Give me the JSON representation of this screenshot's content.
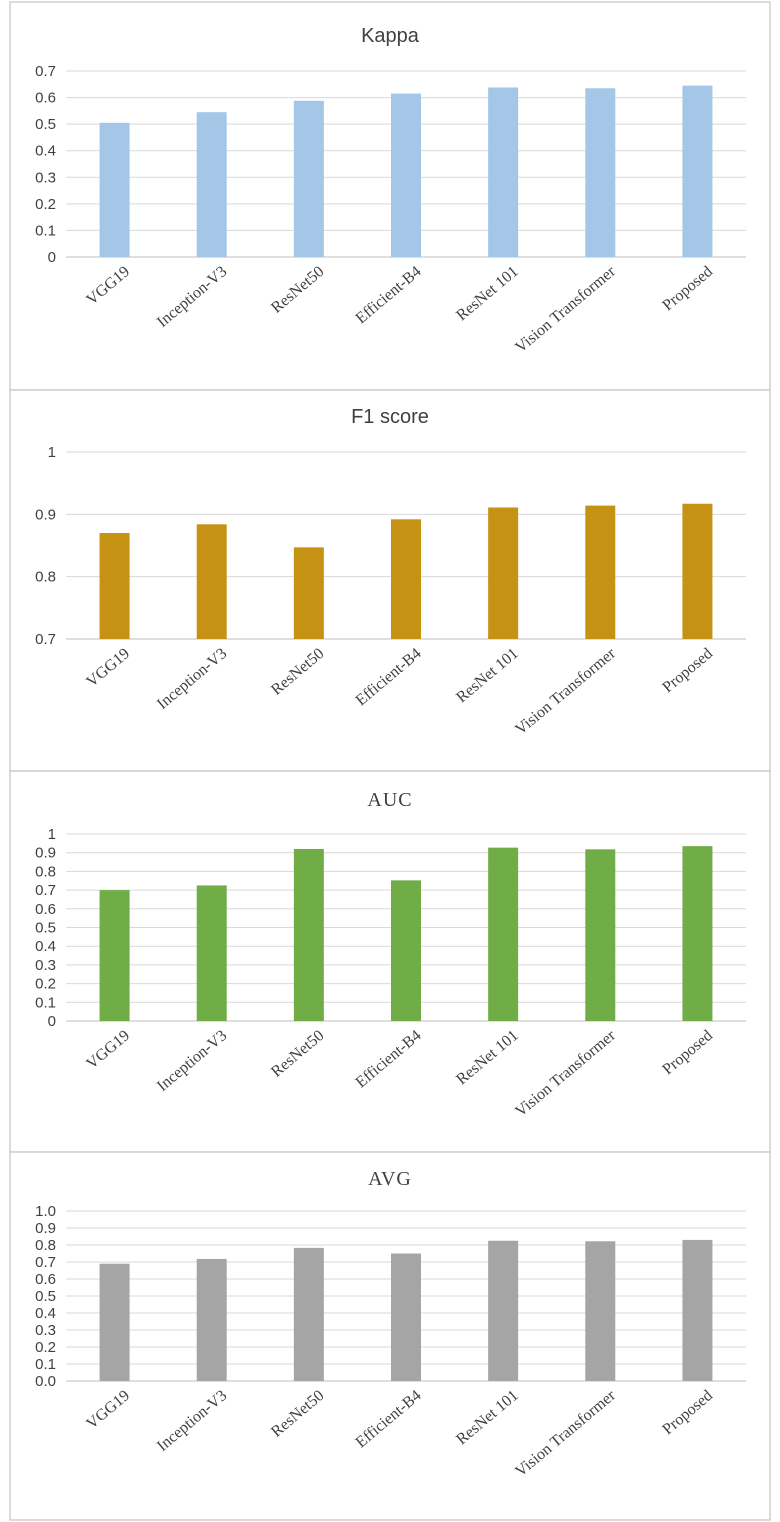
{
  "chart_data": [
    {
      "type": "bar",
      "title": "Kappa",
      "categories": [
        "VGG19",
        "Inception-V3",
        "ResNet50",
        "Efficient-B4",
        "ResNet 101",
        "Vision Transformer",
        "Proposed"
      ],
      "values": [
        0.505,
        0.545,
        0.588,
        0.615,
        0.638,
        0.635,
        0.645
      ],
      "ylim": [
        0,
        0.7
      ],
      "yticks": [
        "0",
        "0.1",
        "0.2",
        "0.3",
        "0.4",
        "0.5",
        "0.6",
        "0.7"
      ],
      "color": "#a4c6e7",
      "grid": true,
      "legend": false
    },
    {
      "type": "bar",
      "title": "F1 score",
      "categories": [
        "VGG19",
        "Inception-V3",
        "ResNet50",
        "Efficient-B4",
        "ResNet 101",
        "Vision Transformer",
        "Proposed"
      ],
      "values": [
        0.87,
        0.884,
        0.847,
        0.892,
        0.911,
        0.914,
        0.917
      ],
      "ylim": [
        0.7,
        1.0
      ],
      "yticks": [
        "0.7",
        "0.8",
        "0.9",
        "1"
      ],
      "color": "#c69214",
      "grid": true,
      "legend": false
    },
    {
      "type": "bar",
      "title": "AUC",
      "categories": [
        "VGG19",
        "Inception-V3",
        "ResNet50",
        "Efficient-B4",
        "ResNet 101",
        "Vision Transformer",
        "Proposed"
      ],
      "values": [
        0.7,
        0.725,
        0.92,
        0.752,
        0.927,
        0.918,
        0.935
      ],
      "ylim": [
        0,
        1.0
      ],
      "yticks": [
        "0",
        "0.1",
        "0.2",
        "0.3",
        "0.4",
        "0.5",
        "0.6",
        "0.7",
        "0.8",
        "0.9",
        "1"
      ],
      "color": "#71ad47",
      "grid": true,
      "legend": false
    },
    {
      "type": "bar",
      "title": "AVG",
      "categories": [
        "VGG19",
        "Inception-V3",
        "ResNet50",
        "Efficient-B4",
        "ResNet 101",
        "Vision Transformer",
        "Proposed"
      ],
      "values": [
        0.69,
        0.718,
        0.783,
        0.75,
        0.825,
        0.822,
        0.83
      ],
      "ylim": [
        0,
        1.0
      ],
      "yticks": [
        "0.0",
        "0.1",
        "0.2",
        "0.3",
        "0.4",
        "0.5",
        "0.6",
        "0.7",
        "0.8",
        "0.9",
        "1.0"
      ],
      "color": "#a5a5a5",
      "grid": true,
      "legend": false
    }
  ]
}
